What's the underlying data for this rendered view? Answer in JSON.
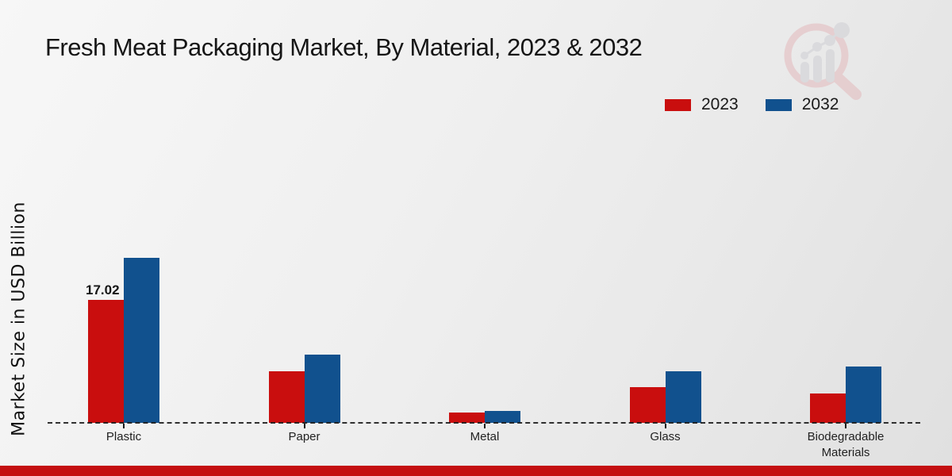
{
  "header": {
    "title": "Fresh Meat Packaging Market, By Material, 2023 & 2032",
    "logo": "market-research-magnifier-logo"
  },
  "legend": {
    "items": [
      {
        "label": "2023",
        "color": "#c90e0e"
      },
      {
        "label": "2032",
        "color": "#11518e"
      }
    ]
  },
  "chart_data": {
    "type": "bar",
    "title": "Fresh Meat Packaging Market, By Material, 2023 & 2032",
    "xlabel": "",
    "ylabel": "Market Size in USD Billion",
    "categories": [
      "Plastic",
      "Paper",
      "Metal",
      "Glass",
      "Biodegradable Materials"
    ],
    "series": [
      {
        "name": "2023",
        "color": "#c90e0e",
        "values": [
          17.02,
          7.2,
          1.4,
          4.9,
          4.1
        ],
        "value_labels": [
          "17.02",
          "",
          "",
          "",
          ""
        ]
      },
      {
        "name": "2032",
        "color": "#11518e",
        "values": [
          22.9,
          9.5,
          1.7,
          7.1,
          7.8
        ],
        "value_labels": [
          "",
          "",
          "",
          "",
          ""
        ]
      }
    ],
    "ylim": [
      0,
      24
    ],
    "grid": false,
    "legend_position": "top-right",
    "baseline_style": "dashed",
    "value_label_note": "only Plastic 2023 bar is labeled"
  },
  "footer": {
    "accent_bar_color": "#c40f11"
  }
}
